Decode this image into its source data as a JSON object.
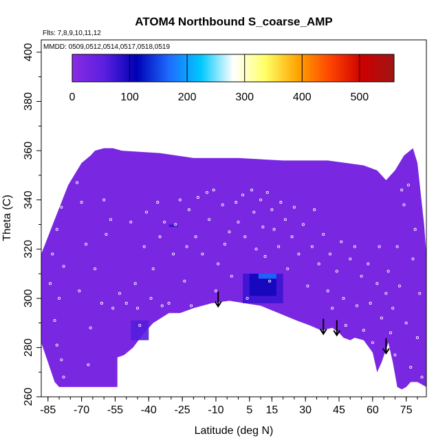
{
  "chart_data": {
    "type": "heatmap",
    "title": "ATOM4 Northbound S_coarse_AMP",
    "annotations": {
      "flights": "Flts: 7,8,9,10,11,12",
      "dates": "MMDD: 0509,0512,0514,0517,0518,0519"
    },
    "xlabel": "Latitude (deg N)",
    "ylabel": "Theta (C)",
    "xlim": [
      -88,
      84
    ],
    "ylim": [
      260,
      405
    ],
    "x_ticks": [
      -85,
      -70,
      -55,
      -40,
      -25,
      -10,
      5,
      15,
      30,
      45,
      60,
      75
    ],
    "y_ticks": [
      260,
      280,
      300,
      320,
      340,
      360,
      380,
      400
    ],
    "colorbar": {
      "range": [
        0,
        560
      ],
      "ticks": [
        0,
        100,
        200,
        300,
        400,
        500
      ],
      "colors": [
        "#8a2be2",
        "#5a1fe0",
        "#0000b4",
        "#1e6bff",
        "#00c8ff",
        "#ffffff",
        "#ffff66",
        "#ffa500",
        "#ff4500",
        "#cc0000",
        "#a01414"
      ]
    },
    "background_value": 20,
    "colors": {
      "field": "#7f22ee",
      "arrow": "#000000",
      "sample": "#ffffff"
    },
    "data_top_boundary": [
      [
        -88,
        318
      ],
      [
        -82,
        332
      ],
      [
        -76,
        346
      ],
      [
        -70,
        355
      ],
      [
        -66,
        358
      ],
      [
        -64,
        360
      ],
      [
        -60,
        361
      ],
      [
        -56,
        361
      ],
      [
        -52,
        360
      ],
      [
        -35,
        359
      ],
      [
        -20,
        357
      ],
      [
        0,
        357
      ],
      [
        20,
        356
      ],
      [
        40,
        356
      ],
      [
        56,
        354
      ],
      [
        62,
        352
      ],
      [
        66,
        348
      ],
      [
        70,
        352
      ],
      [
        74,
        358
      ],
      [
        78,
        361
      ],
      [
        80,
        355
      ],
      [
        83,
        330
      ],
      [
        84,
        318
      ]
    ],
    "data_bottom_boundary": [
      [
        84,
        264
      ],
      [
        82,
        265
      ],
      [
        80,
        266
      ],
      [
        77,
        266
      ],
      [
        75,
        264
      ],
      [
        73,
        263
      ],
      [
        71,
        264
      ],
      [
        69,
        274
      ],
      [
        67,
        282
      ],
      [
        64,
        274
      ],
      [
        62,
        270
      ],
      [
        60,
        278
      ],
      [
        56,
        283
      ],
      [
        52,
        284
      ],
      [
        50,
        283
      ],
      [
        47,
        284
      ],
      [
        45,
        286
      ],
      [
        42,
        288
      ],
      [
        37,
        287
      ],
      [
        32,
        289
      ],
      [
        26,
        291
      ],
      [
        18,
        294
      ],
      [
        10,
        297
      ],
      [
        3,
        298
      ],
      [
        -4,
        299
      ],
      [
        -12,
        298
      ],
      [
        -20,
        296
      ],
      [
        -26,
        294
      ],
      [
        -31,
        294
      ],
      [
        -38,
        290
      ],
      [
        -42,
        286
      ],
      [
        -47,
        280
      ],
      [
        -51,
        277
      ],
      [
        -54,
        276
      ],
      [
        -54,
        264
      ],
      [
        -60,
        264
      ],
      [
        -80,
        264
      ],
      [
        -82,
        266
      ],
      [
        -85,
        274
      ],
      [
        -88,
        282
      ]
    ],
    "high_regions": [
      {
        "lat": [
          2,
          20
        ],
        "theta": [
          298,
          310
        ],
        "value": 75
      },
      {
        "lat": [
          5,
          17
        ],
        "theta": [
          301,
          310
        ],
        "value": 100
      },
      {
        "lat": [
          9,
          17
        ],
        "theta": [
          308,
          310
        ],
        "value": 170
      },
      {
        "lat": [
          -48,
          -40
        ],
        "theta": [
          283,
          291
        ],
        "value": 60
      },
      {
        "lat": [
          -31,
          -27
        ],
        "theta": [
          329,
          330
        ],
        "value": 80
      }
    ],
    "arrows_lat": [
      -9,
      38,
      44,
      66
    ],
    "sample_points": [
      [
        -83,
        318
      ],
      [
        -81,
        328
      ],
      [
        -79,
        337
      ],
      [
        -78,
        313
      ],
      [
        -80,
        300
      ],
      [
        -82,
        291
      ],
      [
        -81,
        281
      ],
      [
        -79,
        275
      ],
      [
        -78,
        268
      ],
      [
        -84,
        306
      ],
      [
        -72,
        347
      ],
      [
        -70,
        339
      ],
      [
        -68,
        322
      ],
      [
        -71,
        303
      ],
      [
        -66,
        288
      ],
      [
        -67,
        273
      ],
      [
        -64,
        312
      ],
      [
        -60,
        340
      ],
      [
        -59,
        326
      ],
      [
        -56,
        296
      ],
      [
        -53,
        302
      ],
      [
        -52,
        276
      ],
      [
        -50,
        298
      ],
      [
        -48,
        331
      ],
      [
        -46,
        306
      ],
      [
        -45,
        296
      ],
      [
        -44,
        289
      ],
      [
        -42,
        321
      ],
      [
        -41,
        335
      ],
      [
        -38,
        312
      ],
      [
        -36,
        339
      ],
      [
        -35,
        325
      ],
      [
        -33,
        331
      ],
      [
        -31,
        298
      ],
      [
        -29,
        318
      ],
      [
        -28,
        330
      ],
      [
        -26,
        340
      ],
      [
        -24,
        307
      ],
      [
        -22,
        336
      ],
      [
        -21,
        297
      ],
      [
        -19,
        325
      ],
      [
        -18,
        341
      ],
      [
        -16,
        318
      ],
      [
        -14,
        343
      ],
      [
        -13,
        332
      ],
      [
        -11,
        344
      ],
      [
        -10,
        303
      ],
      [
        -9,
        314
      ],
      [
        -7,
        338
      ],
      [
        -6,
        322
      ],
      [
        -4,
        327
      ],
      [
        -3,
        309
      ],
      [
        -1,
        339
      ],
      [
        0,
        331
      ],
      [
        2,
        342
      ],
      [
        3,
        325
      ],
      [
        4,
        300
      ],
      [
        6,
        344
      ],
      [
        7,
        335
      ],
      [
        8,
        320
      ],
      [
        10,
        340
      ],
      [
        11,
        329
      ],
      [
        12,
        317
      ],
      [
        13,
        343
      ],
      [
        14,
        307
      ],
      [
        15,
        336
      ],
      [
        16,
        328
      ],
      [
        18,
        321
      ],
      [
        19,
        339
      ],
      [
        21,
        332
      ],
      [
        22,
        312
      ],
      [
        24,
        325
      ],
      [
        25,
        337
      ],
      [
        27,
        318
      ],
      [
        29,
        330
      ],
      [
        31,
        305
      ],
      [
        33,
        321
      ],
      [
        34,
        336
      ],
      [
        36,
        314
      ],
      [
        38,
        326
      ],
      [
        40,
        303
      ],
      [
        41,
        318
      ],
      [
        42,
        296
      ],
      [
        44,
        311
      ],
      [
        46,
        323
      ],
      [
        47,
        300
      ],
      [
        48,
        289
      ],
      [
        50,
        316
      ],
      [
        52,
        321
      ],
      [
        53,
        297
      ],
      [
        55,
        309
      ],
      [
        56,
        287
      ],
      [
        58,
        314
      ],
      [
        59,
        298
      ],
      [
        60,
        282
      ],
      [
        62,
        306
      ],
      [
        63,
        321
      ],
      [
        64,
        292
      ],
      [
        66,
        302
      ],
      [
        67,
        311
      ],
      [
        68,
        286
      ],
      [
        69,
        296
      ],
      [
        70,
        277
      ],
      [
        71,
        321
      ],
      [
        72,
        305
      ],
      [
        73,
        344
      ],
      [
        74,
        338
      ],
      [
        75,
        290
      ],
      [
        76,
        346
      ],
      [
        77,
        272
      ],
      [
        78,
        316
      ],
      [
        79,
        328
      ],
      [
        80,
        284
      ],
      [
        81,
        302
      ],
      [
        82,
        268
      ],
      [
        -61,
        298
      ],
      [
        -57,
        332
      ],
      [
        -39,
        300
      ],
      [
        -34,
        297
      ],
      [
        -23,
        321
      ]
    ]
  }
}
